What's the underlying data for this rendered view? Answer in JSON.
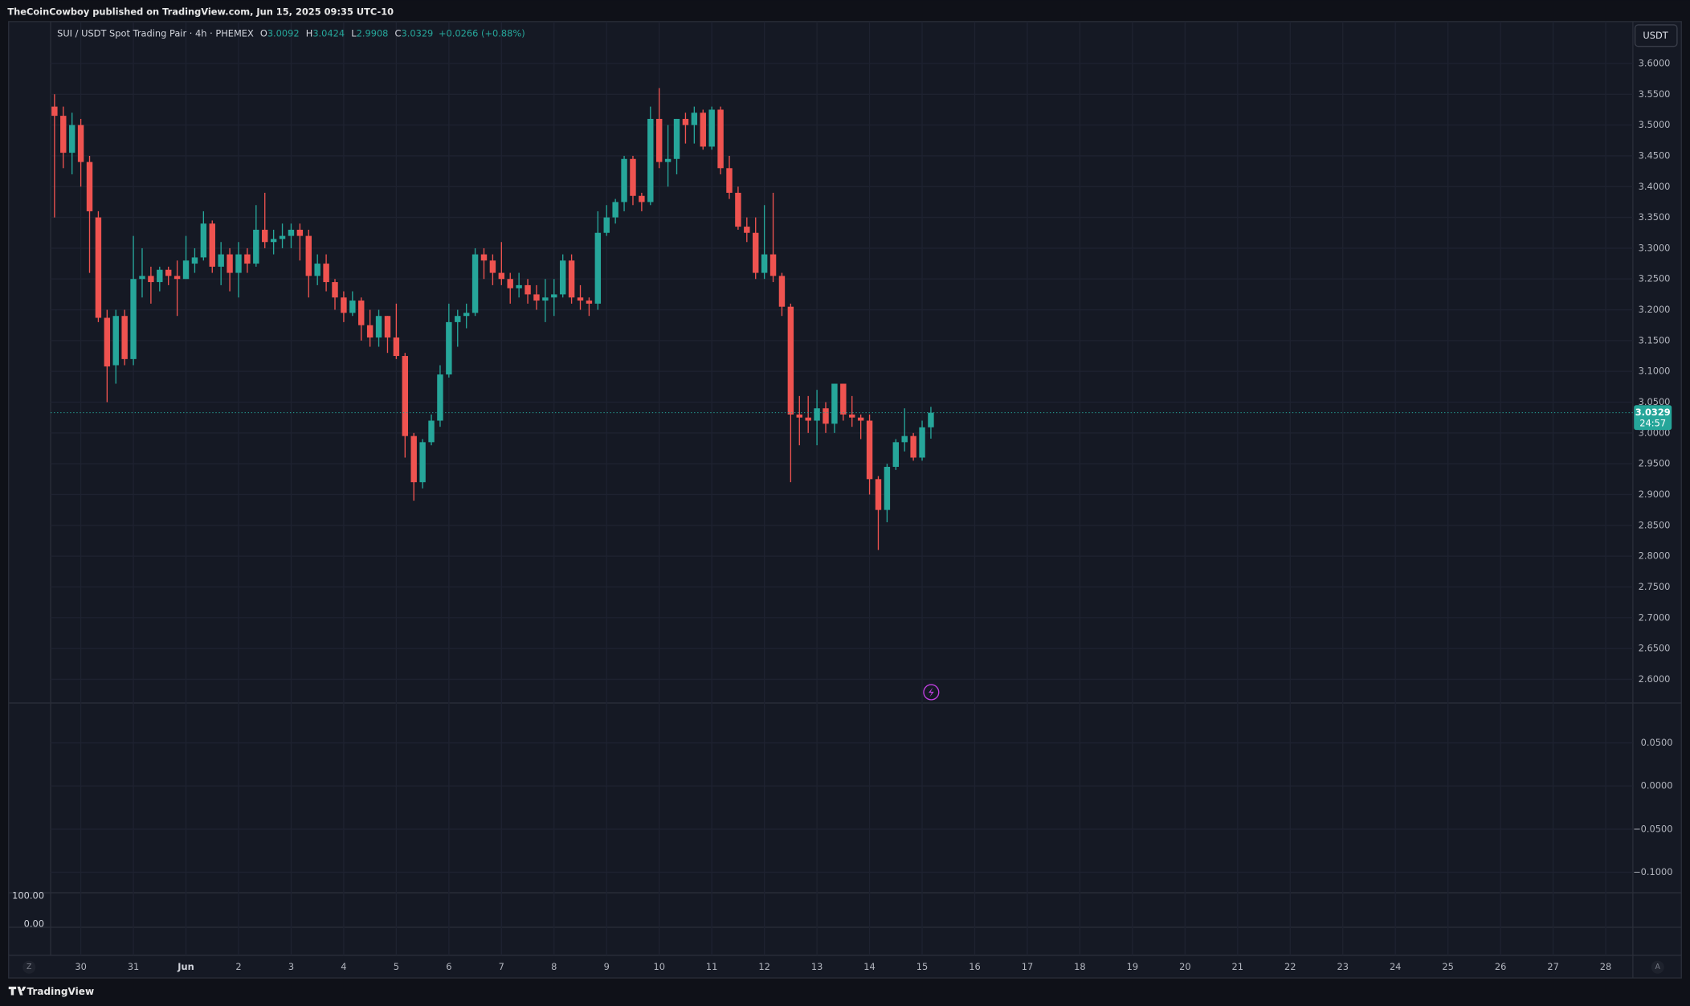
{
  "header": {
    "publisher": "TheCoinCowboy published on TradingView.com, Jun 15, 2025 09:35 UTC-10"
  },
  "toolbar": {
    "currency": "USDT",
    "left_button": "Z",
    "right_button": "A",
    "countdown": "24:57"
  },
  "footer": {
    "brand": "TradingView"
  },
  "chart_data": {
    "type": "candlestick",
    "symbol": "SUI / USDT Spot Trading Pair · 4h · PHEMEX",
    "ohlc_labels": [
      "O",
      "H",
      "L",
      "C"
    ],
    "change": "+0.0266 (+0.88%)",
    "up_color": "#26a69a",
    "down_color": "#ef5350",
    "open": [
      3.53,
      3.515,
      3.455,
      3.5,
      3.44,
      3.35,
      3.187,
      3.11,
      3.19,
      3.12,
      3.25,
      3.255,
      3.245,
      3.265,
      3.255,
      3.25,
      3.275,
      3.285,
      3.34,
      3.27,
      3.29,
      3.26,
      3.29,
      3.275,
      3.33,
      3.31,
      3.315,
      3.32,
      3.33,
      3.32,
      3.255,
      3.275,
      3.245,
      3.22,
      3.195,
      3.215,
      3.175,
      3.155,
      3.19,
      3.155,
      3.125,
      2.995,
      2.92,
      2.985,
      3.02,
      3.095,
      3.18,
      3.19,
      3.195,
      3.29,
      3.28,
      3.26,
      3.25,
      3.235,
      3.24,
      3.225,
      3.215,
      3.22,
      3.225,
      3.28,
      3.22,
      3.215,
      3.21,
      3.325,
      3.35,
      3.375,
      3.445,
      3.385,
      3.375,
      3.51,
      3.44,
      3.445,
      3.51,
      3.5,
      3.52,
      3.465,
      3.525,
      3.43,
      3.39,
      3.335,
      3.325,
      3.26,
      3.29,
      3.255,
      3.205,
      3.03,
      3.025,
      3.02,
      3.04,
      3.015,
      3.08,
      3.03,
      3.025,
      3.02,
      2.925,
      2.875,
      2.945,
      2.985,
      2.995,
      2.96,
      3.0092
    ],
    "high": [
      3.55,
      3.53,
      3.52,
      3.51,
      3.45,
      3.36,
      3.2,
      3.2,
      3.2,
      3.32,
      3.3,
      3.27,
      3.27,
      3.27,
      3.28,
      3.32,
      3.3,
      3.36,
      3.345,
      3.31,
      3.3,
      3.31,
      3.3,
      3.37,
      3.39,
      3.33,
      3.34,
      3.34,
      3.34,
      3.33,
      3.29,
      3.29,
      3.25,
      3.23,
      3.23,
      3.22,
      3.2,
      3.2,
      3.19,
      3.21,
      3.13,
      3.0,
      2.99,
      3.03,
      3.11,
      3.21,
      3.2,
      3.21,
      3.3,
      3.3,
      3.29,
      3.31,
      3.26,
      3.26,
      3.25,
      3.24,
      3.25,
      3.25,
      3.29,
      3.29,
      3.24,
      3.22,
      3.36,
      3.37,
      3.38,
      3.45,
      3.45,
      3.39,
      3.53,
      3.56,
      3.5,
      3.51,
      3.52,
      3.53,
      3.525,
      3.53,
      3.53,
      3.45,
      3.4,
      3.35,
      3.35,
      3.37,
      3.39,
      3.26,
      3.21,
      3.06,
      3.06,
      3.07,
      3.05,
      3.08,
      3.08,
      3.06,
      3.03,
      3.03,
      2.93,
      2.95,
      2.99,
      3.04,
      3.0,
      3.02,
      3.0424
    ],
    "low": [
      3.35,
      3.43,
      3.42,
      3.4,
      3.26,
      3.18,
      3.05,
      3.08,
      3.11,
      3.11,
      3.22,
      3.21,
      3.23,
      3.24,
      3.19,
      3.25,
      3.26,
      3.28,
      3.26,
      3.24,
      3.23,
      3.22,
      3.26,
      3.27,
      3.3,
      3.29,
      3.3,
      3.3,
      3.28,
      3.22,
      3.24,
      3.23,
      3.2,
      3.18,
      3.19,
      3.15,
      3.14,
      3.14,
      3.13,
      3.12,
      2.96,
      2.89,
      2.91,
      2.98,
      3.01,
      3.09,
      3.14,
      3.17,
      3.19,
      3.25,
      3.24,
      3.24,
      3.21,
      3.22,
      3.21,
      3.2,
      3.18,
      3.19,
      3.22,
      3.21,
      3.2,
      3.19,
      3.2,
      3.32,
      3.34,
      3.36,
      3.37,
      3.36,
      3.37,
      3.43,
      3.4,
      3.42,
      3.47,
      3.47,
      3.46,
      3.46,
      3.42,
      3.38,
      3.33,
      3.31,
      3.25,
      3.25,
      3.245,
      3.19,
      2.92,
      2.98,
      3.0,
      2.98,
      3.0,
      3.0,
      3.02,
      3.01,
      2.99,
      2.9,
      2.81,
      2.855,
      2.94,
      2.97,
      2.955,
      2.955,
      2.9908
    ],
    "close": [
      3.515,
      3.455,
      3.5,
      3.44,
      3.36,
      3.187,
      3.108,
      3.19,
      3.12,
      3.25,
      3.255,
      3.245,
      3.265,
      3.255,
      3.25,
      3.28,
      3.285,
      3.34,
      3.27,
      3.29,
      3.26,
      3.29,
      3.275,
      3.33,
      3.31,
      3.315,
      3.32,
      3.33,
      3.32,
      3.255,
      3.275,
      3.245,
      3.22,
      3.195,
      3.215,
      3.175,
      3.155,
      3.19,
      3.155,
      3.125,
      2.995,
      2.92,
      2.985,
      3.02,
      3.095,
      3.18,
      3.19,
      3.195,
      3.29,
      3.28,
      3.26,
      3.25,
      3.235,
      3.24,
      3.225,
      3.215,
      3.22,
      3.225,
      3.28,
      3.22,
      3.215,
      3.21,
      3.325,
      3.35,
      3.375,
      3.445,
      3.385,
      3.375,
      3.51,
      3.44,
      3.445,
      3.51,
      3.5,
      3.52,
      3.465,
      3.525,
      3.43,
      3.39,
      3.335,
      3.325,
      3.26,
      3.29,
      3.255,
      3.205,
      3.03,
      3.025,
      3.02,
      3.04,
      3.015,
      3.08,
      3.03,
      3.025,
      3.02,
      2.925,
      2.875,
      2.945,
      2.985,
      2.995,
      2.96,
      3.0092,
      3.0329
    ],
    "xlim": [
      -0.44,
      180.1
    ],
    "xticks": [
      {
        "value": 3,
        "label": "30"
      },
      {
        "value": 9,
        "label": "31"
      },
      {
        "value": 15,
        "label": "Jun"
      },
      {
        "value": 21,
        "label": "2"
      },
      {
        "value": 27,
        "label": "3"
      },
      {
        "value": 33,
        "label": "4"
      },
      {
        "value": 39,
        "label": "5"
      },
      {
        "value": 45,
        "label": "6"
      },
      {
        "value": 51,
        "label": "7"
      },
      {
        "value": 57,
        "label": "8"
      },
      {
        "value": 63,
        "label": "9"
      },
      {
        "value": 69,
        "label": "10"
      },
      {
        "value": 75,
        "label": "11"
      },
      {
        "value": 81,
        "label": "12"
      },
      {
        "value": 87,
        "label": "13"
      },
      {
        "value": 93,
        "label": "14"
      },
      {
        "value": 99,
        "label": "15"
      },
      {
        "value": 105,
        "label": "16"
      },
      {
        "value": 111,
        "label": "17"
      },
      {
        "value": 117,
        "label": "18"
      },
      {
        "value": 123,
        "label": "19"
      },
      {
        "value": 129,
        "label": "20"
      },
      {
        "value": 135,
        "label": "21"
      },
      {
        "value": 141,
        "label": "22"
      },
      {
        "value": 147,
        "label": "23"
      },
      {
        "value": 153,
        "label": "24"
      },
      {
        "value": 159,
        "label": "25"
      },
      {
        "value": 165,
        "label": "26"
      },
      {
        "value": 171,
        "label": "27"
      },
      {
        "value": 177,
        "label": "28"
      }
    ],
    "ylim": [
      2.5615,
      3.668
    ],
    "yticks": [
      {
        "value": 2.6,
        "label": "2.6000"
      },
      {
        "value": 2.65,
        "label": "2.6500"
      },
      {
        "value": 2.7,
        "label": "2.7000"
      },
      {
        "value": 2.75,
        "label": "2.7500"
      },
      {
        "value": 2.8,
        "label": "2.8000"
      },
      {
        "value": 2.85,
        "label": "2.8500"
      },
      {
        "value": 2.9,
        "label": "2.9000"
      },
      {
        "value": 2.95,
        "label": "2.9500"
      },
      {
        "value": 3,
        "label": "3.0000"
      },
      {
        "value": 3.05,
        "label": "3.0500"
      },
      {
        "value": 3.1,
        "label": "3.1000"
      },
      {
        "value": 3.15,
        "label": "3.1500"
      },
      {
        "value": 3.2,
        "label": "3.2000"
      },
      {
        "value": 3.25,
        "label": "3.2500"
      },
      {
        "value": 3.3,
        "label": "3.3000"
      },
      {
        "value": 3.35,
        "label": "3.3500"
      },
      {
        "value": 3.4,
        "label": "3.4000"
      },
      {
        "value": 3.45,
        "label": "3.4500"
      },
      {
        "value": 3.5,
        "label": "3.5000"
      },
      {
        "value": 3.55,
        "label": "3.5500"
      },
      {
        "value": 3.6,
        "label": "3.6000"
      }
    ],
    "grid": true,
    "panes": [
      {
        "ylim": [
          -0.12375,
          0.09625
        ],
        "yticks": [
          {
            "value": 0.05,
            "label": "0.0500"
          },
          {
            "value": 0,
            "label": "0.0000"
          },
          {
            "value": -0.05,
            "label": "−0.0500"
          },
          {
            "value": -0.1,
            "label": "−0.1000"
          }
        ]
      },
      {
        "ylim": [
          -11.5,
          111.5
        ],
        "yticks": [
          {
            "value": 100,
            "label": "100.00"
          },
          {
            "value": 0,
            "label": "0.00"
          }
        ]
      }
    ]
  }
}
